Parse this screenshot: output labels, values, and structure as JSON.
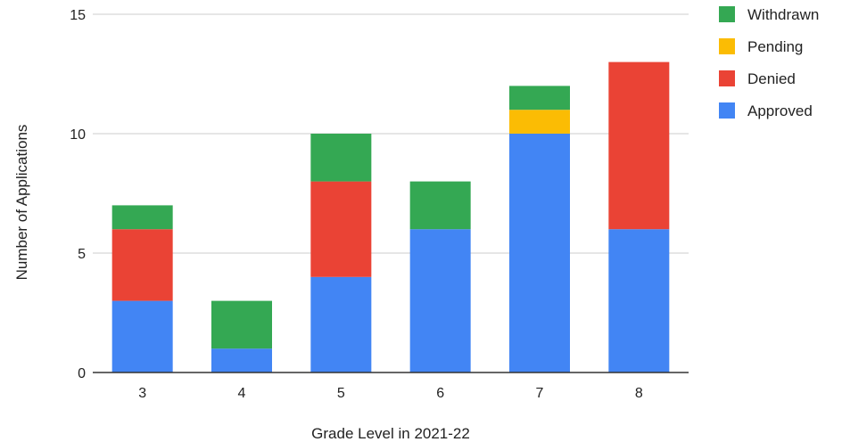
{
  "chart_data": {
    "type": "bar",
    "stacked": true,
    "title": "",
    "xlabel": "Grade Level in 2021-22",
    "ylabel": "Number of Applications",
    "categories": [
      "3",
      "4",
      "5",
      "6",
      "7",
      "8"
    ],
    "ylim": [
      0,
      15
    ],
    "yticks": [
      "0",
      "5",
      "10",
      "15"
    ],
    "grid": true,
    "legend_position": "right",
    "series": [
      {
        "name": "Approved",
        "color": "#4285f4",
        "values": [
          3,
          1,
          4,
          6,
          10,
          6
        ]
      },
      {
        "name": "Denied",
        "color": "#ea4335",
        "values": [
          3,
          0,
          4,
          0,
          0,
          7
        ]
      },
      {
        "name": "Pending",
        "color": "#fbbc04",
        "values": [
          0,
          0,
          0,
          0,
          1,
          0
        ]
      },
      {
        "name": "Withdrawn",
        "color": "#34a853",
        "values": [
          1,
          2,
          2,
          2,
          1,
          0
        ]
      }
    ],
    "legend_order": [
      "Withdrawn",
      "Pending",
      "Denied",
      "Approved"
    ]
  }
}
